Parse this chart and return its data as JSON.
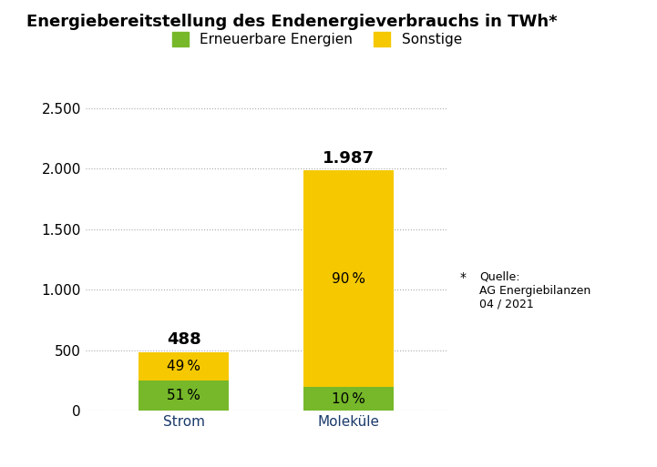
{
  "title": "Energiebereitstellung des Endenergieverbrauchs in TWh*",
  "categories": [
    "Strom",
    "Moleküle"
  ],
  "totals": [
    488,
    1987
  ],
  "green_pct": [
    51,
    10
  ],
  "yellow_pct": [
    49,
    90
  ],
  "green_values": [
    248.88,
    198.7
  ],
  "yellow_values": [
    239.12,
    1788.3
  ],
  "color_green": "#76b82a",
  "color_yellow": "#f5c800",
  "legend_green": "Erneuerbare Energien",
  "legend_yellow": "Sonstige",
  "yticks": [
    0,
    500,
    1000,
    1500,
    2000,
    2500
  ],
  "ytick_labels": [
    "0",
    "500",
    "1.000",
    "1.500",
    "2.000",
    "2.500"
  ],
  "ylim": [
    0,
    2700
  ],
  "footnote_star": "*",
  "footnote_text": "Quelle:\nAG Energiebilanzen\n04 / 2021",
  "background_color": "#ffffff",
  "title_fontsize": 13,
  "tick_fontsize": 11,
  "legend_fontsize": 11,
  "total_label_fontsize": 13,
  "pct_label_fontsize": 11,
  "tick_color": "#1a3a6b",
  "bar_width": 0.55
}
